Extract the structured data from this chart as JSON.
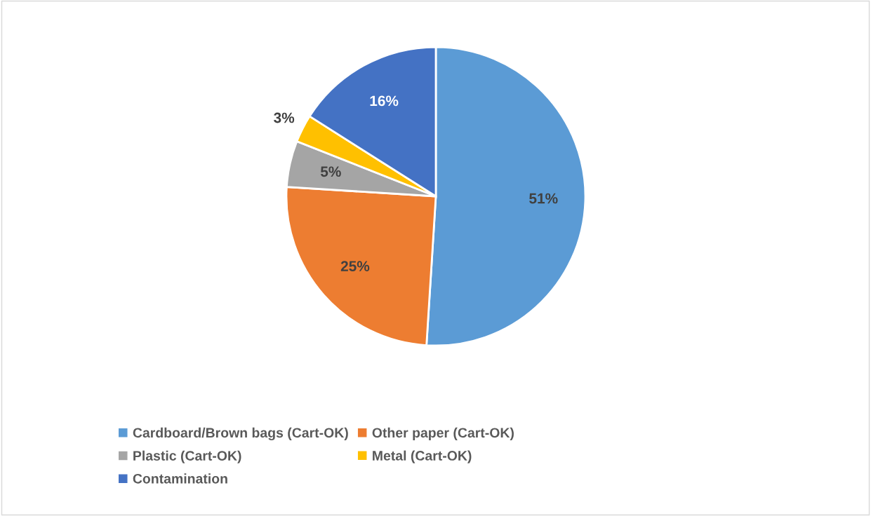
{
  "chart_data": {
    "type": "pie",
    "categories": [
      "Cardboard/Brown bags (Cart-OK)",
      "Other paper (Cart-OK)",
      "Plastic (Cart-OK)",
      "Metal (Cart-OK)",
      "Contamination"
    ],
    "values": [
      51,
      25,
      5,
      3,
      16
    ],
    "colors": [
      "#5b9bd5",
      "#ed7d31",
      "#a5a5a5",
      "#ffc000",
      "#4472c4"
    ],
    "value_labels": [
      "51%",
      "25%",
      "5%",
      "3%",
      "16%"
    ],
    "legend": "bottom"
  }
}
